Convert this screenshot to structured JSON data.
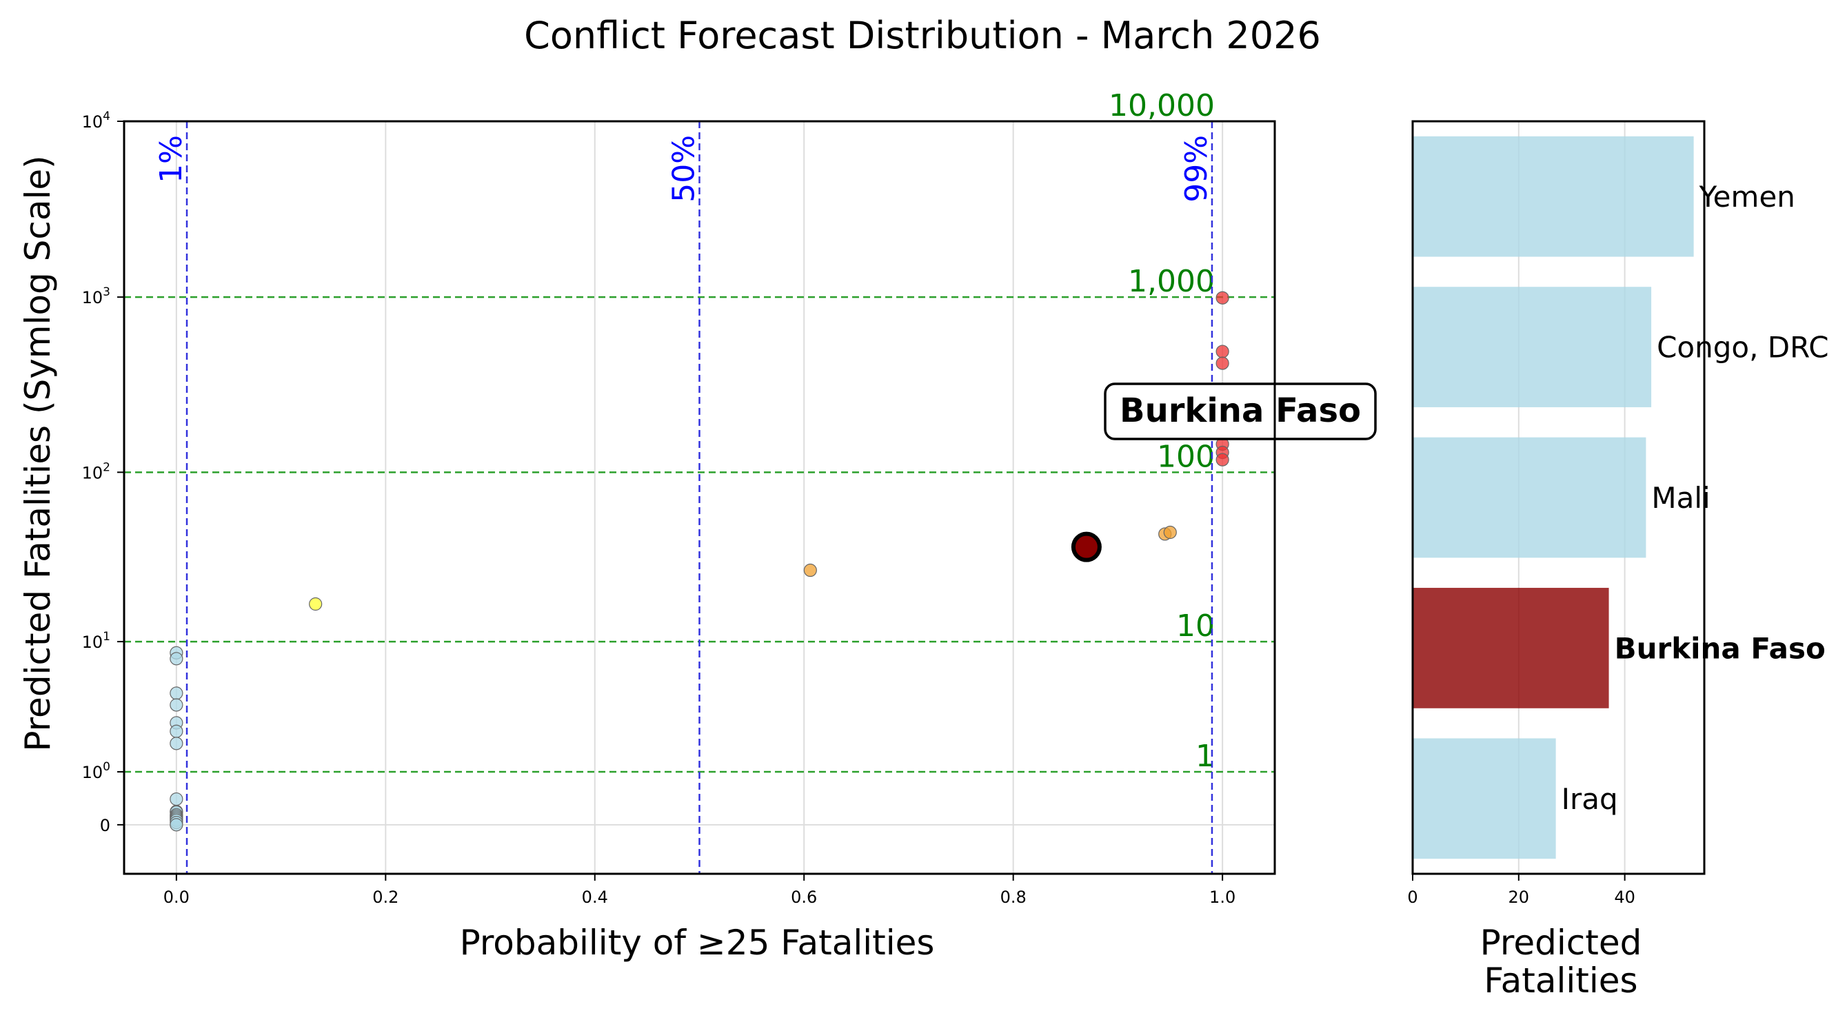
{
  "title": "Conflict Forecast Distribution - March 2026",
  "colors": {
    "threshold_line": "#2ca02c",
    "threshold_label": "#008000",
    "prob_line": "#3333dd",
    "prob_label": "#0000ff",
    "grid": "#dddddd",
    "highlight": "#8b0000",
    "bar_default": "#add8e6",
    "bar_highlight": "#8b0000",
    "pt_low": "#add8e6",
    "pt_yellow": "#ffff33",
    "pt_orange": "#f0a030",
    "pt_red": "#ee3333"
  },
  "chart_data": [
    {
      "type": "scatter",
      "xlabel": "Probability of ≥25 Fatalities",
      "ylabel": "Predicted Fatalities (Symlog Scale)",
      "xlim": [
        -0.05,
        1.05
      ],
      "ylim": [
        -0.9,
        10000
      ],
      "y_scale": "symlog",
      "x_ticks": [
        {
          "value": 0.0,
          "label": "0.0"
        },
        {
          "value": 0.2,
          "label": "0.2"
        },
        {
          "value": 0.4,
          "label": "0.4"
        },
        {
          "value": 0.6,
          "label": "0.6"
        },
        {
          "value": 0.8,
          "label": "0.8"
        },
        {
          "value": 1.0,
          "label": "1.0"
        }
      ],
      "y_ticks": [
        {
          "value": 0,
          "base": "0",
          "exp": ""
        },
        {
          "value": 1,
          "base": "10",
          "exp": "0"
        },
        {
          "value": 10,
          "base": "10",
          "exp": "1"
        },
        {
          "value": 100,
          "base": "10",
          "exp": "2"
        },
        {
          "value": 1000,
          "base": "10",
          "exp": "3"
        },
        {
          "value": 10000,
          "base": "10",
          "exp": "4"
        }
      ],
      "threshold_lines": [
        {
          "value": 1,
          "label": "1"
        },
        {
          "value": 10,
          "label": "10"
        },
        {
          "value": 100,
          "label": "100"
        },
        {
          "value": 1000,
          "label": "1,000"
        },
        {
          "value": 10000,
          "label": "10,000"
        }
      ],
      "probability_lines": [
        {
          "value": 0.01,
          "label": "1%"
        },
        {
          "value": 0.5,
          "label": "50%"
        },
        {
          "value": 0.99,
          "label": "99%"
        }
      ],
      "points": [
        {
          "x": 0.0,
          "y": 8.5,
          "color": "pt_low"
        },
        {
          "x": 0.0,
          "y": 7.8,
          "color": "pt_low"
        },
        {
          "x": 0.0,
          "y": 4.6,
          "color": "pt_low"
        },
        {
          "x": 0.0,
          "y": 3.8,
          "color": "pt_low"
        },
        {
          "x": 0.0,
          "y": 2.8,
          "color": "pt_low"
        },
        {
          "x": 0.0,
          "y": 2.4,
          "color": "pt_low"
        },
        {
          "x": 0.0,
          "y": 1.9,
          "color": "pt_low"
        },
        {
          "x": 0.0,
          "y": 0.4,
          "color": "pt_low"
        },
        {
          "x": 0.0,
          "y": 0.19,
          "color": "pt_low"
        },
        {
          "x": 0.0,
          "y": 0.18,
          "color": "pt_low"
        },
        {
          "x": 0.0,
          "y": 0.14,
          "color": "pt_low"
        },
        {
          "x": 0.0,
          "y": 0.12,
          "color": "pt_low"
        },
        {
          "x": 0.0,
          "y": 0.1,
          "color": "pt_low"
        },
        {
          "x": 0.0,
          "y": 0.08,
          "color": "pt_low"
        },
        {
          "x": 0.0,
          "y": 0.06,
          "color": "pt_low"
        },
        {
          "x": 0.0,
          "y": 0.03,
          "color": "pt_low"
        },
        {
          "x": 0.0,
          "y": 0.0,
          "color": "pt_low"
        },
        {
          "x": 0.133,
          "y": 17,
          "color": "pt_yellow"
        },
        {
          "x": 0.606,
          "y": 27,
          "color": "pt_orange"
        },
        {
          "x": 0.945,
          "y": 44,
          "color": "pt_orange"
        },
        {
          "x": 0.95,
          "y": 45,
          "color": "pt_orange"
        },
        {
          "x": 1.0,
          "y": 990,
          "color": "pt_red"
        },
        {
          "x": 1.0,
          "y": 490,
          "color": "pt_red"
        },
        {
          "x": 1.0,
          "y": 420,
          "color": "pt_red"
        },
        {
          "x": 1.0,
          "y": 145,
          "color": "pt_red"
        },
        {
          "x": 1.0,
          "y": 130,
          "color": "pt_red"
        },
        {
          "x": 1.0,
          "y": 118,
          "color": "pt_red"
        }
      ],
      "highlight_point": {
        "x": 0.87,
        "y": 37,
        "label": "Burkina Faso"
      }
    },
    {
      "type": "bar",
      "orientation": "horizontal",
      "xlabel_lines": [
        "Predicted",
        "Fatalities"
      ],
      "xlim": [
        0,
        55
      ],
      "x_ticks": [
        {
          "value": 0,
          "label": "0"
        },
        {
          "value": 20,
          "label": "20"
        },
        {
          "value": 40,
          "label": "40"
        }
      ],
      "categories": [
        "Yemen",
        "Congo, DRC",
        "Mali",
        "Burkina Faso",
        "Iraq"
      ],
      "values": [
        53,
        45,
        44,
        37,
        27
      ],
      "highlight_index": 3
    }
  ]
}
